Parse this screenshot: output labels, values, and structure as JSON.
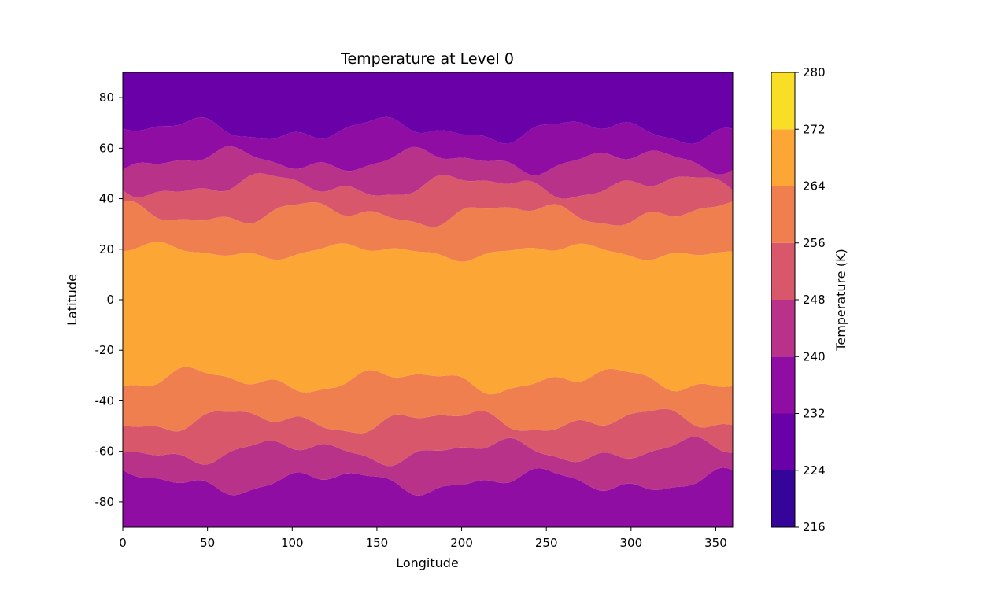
{
  "chart_data": {
    "type": "heatmap",
    "subtype": "filled-contour",
    "title": "Temperature at Level 0",
    "xlabel": "Longitude",
    "ylabel": "Latitude",
    "xlim": [
      0,
      360
    ],
    "ylim": [
      -90,
      90
    ],
    "xticks": [
      0,
      50,
      100,
      150,
      200,
      250,
      300,
      350
    ],
    "yticks": [
      -80,
      -60,
      -40,
      -20,
      0,
      20,
      40,
      60,
      80
    ],
    "grid": false,
    "colorbar": {
      "label": "Temperature (K)",
      "ticks": [
        216,
        224,
        232,
        240,
        248,
        256,
        264,
        272,
        280
      ],
      "levels": [
        216,
        224,
        232,
        240,
        248,
        256,
        264,
        272,
        280
      ],
      "colors": [
        "#350498",
        "#6a00a8",
        "#900da4",
        "#b83289",
        "#d8576b",
        "#f07f4f",
        "#fca636",
        "#f8df25"
      ],
      "colormap": "plasma"
    },
    "zonal_bands": [
      {
        "band": 1,
        "lat_range": [
          -90,
          -72
        ],
        "temperature_range": [
          232,
          240
        ]
      },
      {
        "band": 2,
        "lat_range": [
          -72,
          -60
        ],
        "temperature_range": [
          240,
          248
        ]
      },
      {
        "band": 3,
        "lat_range": [
          -60,
          -48
        ],
        "temperature_range": [
          248,
          256
        ]
      },
      {
        "band": 4,
        "lat_range": [
          -48,
          -32
        ],
        "temperature_range": [
          256,
          264
        ]
      },
      {
        "band": 5,
        "lat_range": [
          -32,
          19
        ],
        "temperature_range": [
          264,
          272
        ]
      },
      {
        "band": 6,
        "lat_range": [
          19,
          34
        ],
        "temperature_range": [
          256,
          264
        ]
      },
      {
        "band": 7,
        "lat_range": [
          34,
          45
        ],
        "temperature_range": [
          248,
          256
        ]
      },
      {
        "band": 8,
        "lat_range": [
          45,
          55
        ],
        "temperature_range": [
          240,
          248
        ]
      },
      {
        "band": 9,
        "lat_range": [
          55,
          67
        ],
        "temperature_range": [
          232,
          240
        ]
      },
      {
        "band": 10,
        "lat_range": [
          67,
          90
        ],
        "temperature_range": [
          224,
          232
        ]
      }
    ]
  }
}
